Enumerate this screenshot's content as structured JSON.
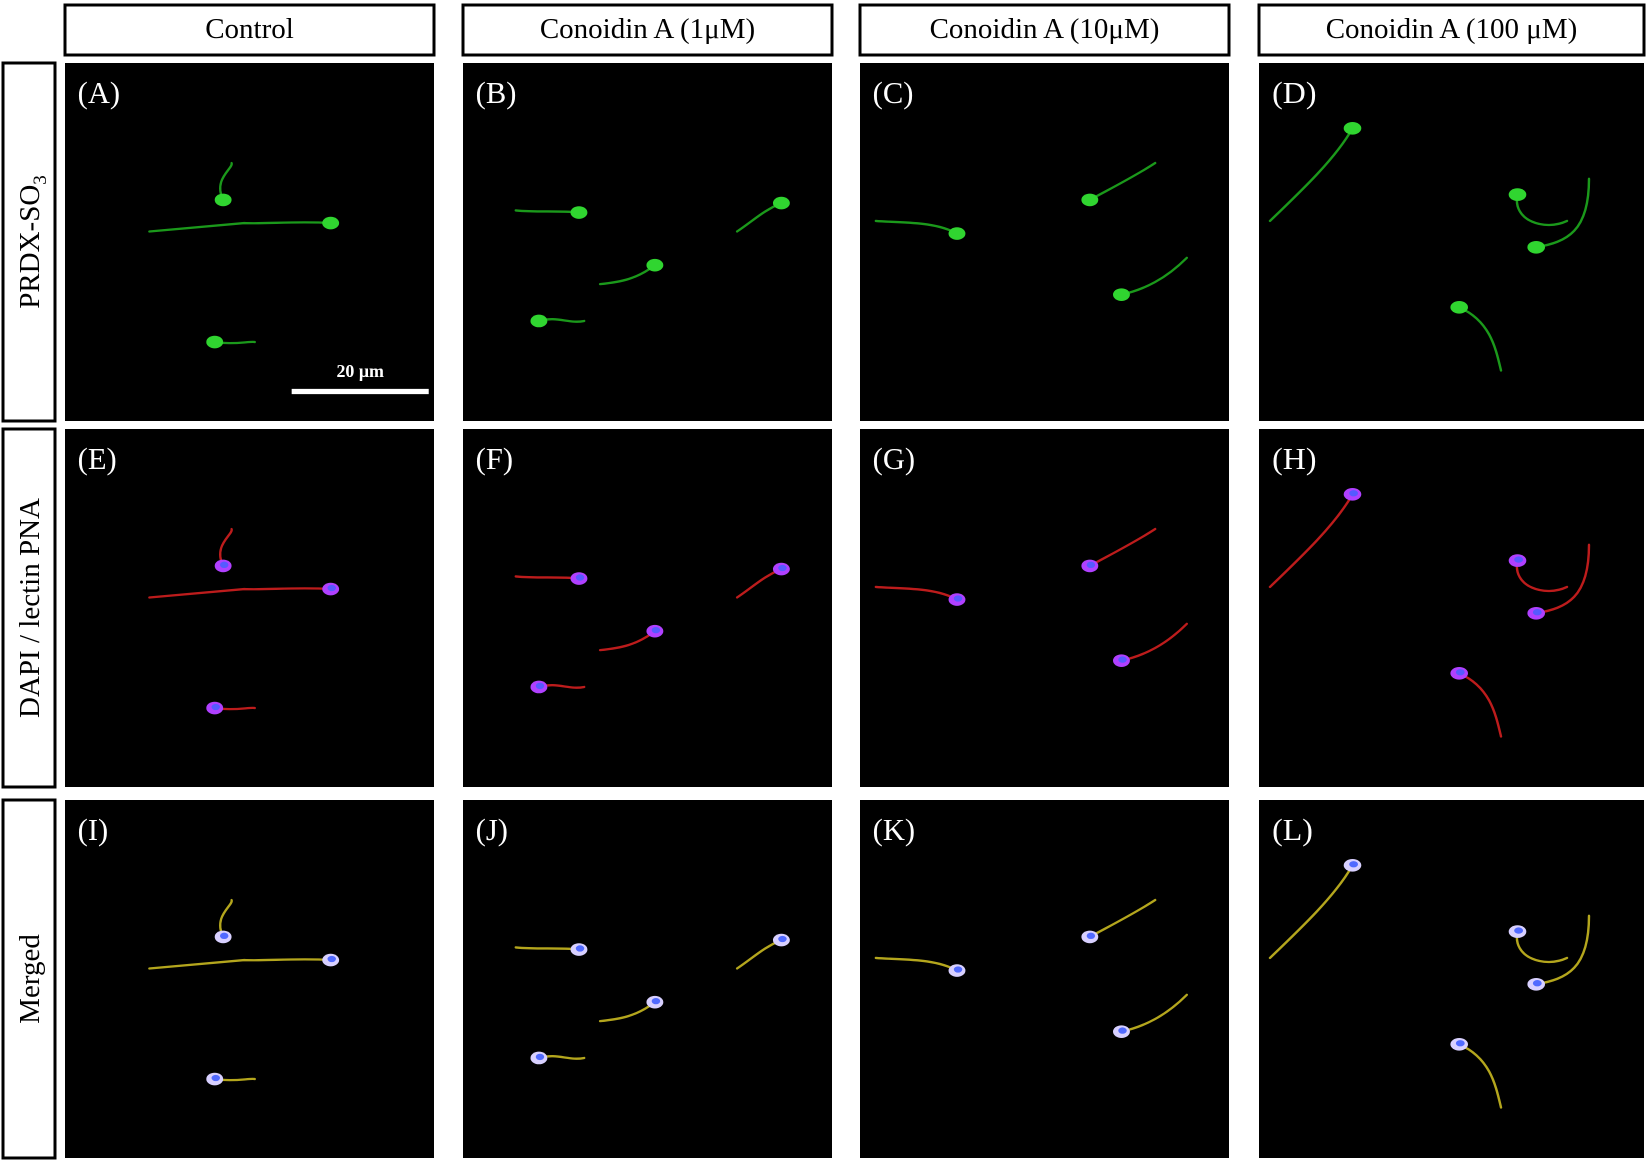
{
  "column_headers": [
    "Control",
    "Conoidin A (1μM)",
    "Conoidin A (10μM)",
    "Conoidin A (100 μM)"
  ],
  "row_labels": [
    {
      "text": "PRDX-SO",
      "subscript": "3"
    },
    "DAPI / lectin PNA",
    "Merged"
  ],
  "panels": [
    [
      "(A)",
      "(B)",
      "(C)",
      "(D)"
    ],
    [
      "(E)",
      "(F)",
      "(G)",
      "(H)"
    ],
    [
      "(I)",
      "(J)",
      "(K)",
      "(L)"
    ]
  ],
  "scale_bar": "20 μm"
}
